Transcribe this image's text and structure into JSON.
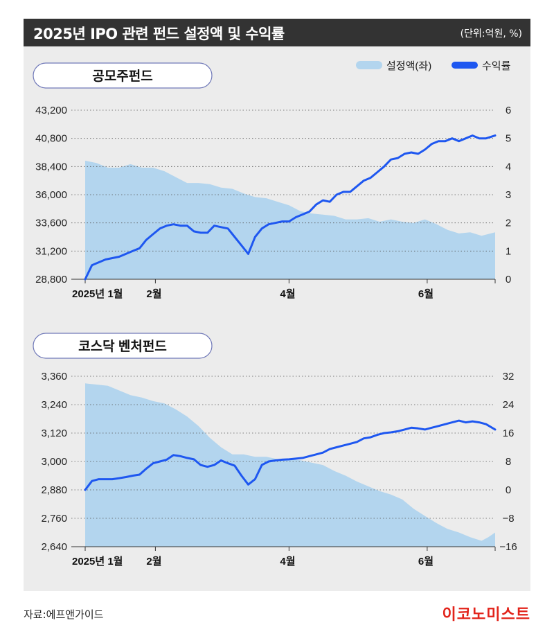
{
  "header": {
    "title": "2025년 IPO 관련 펀드 설정액 및 수익률",
    "unit": "(단위:억원, %)"
  },
  "legend": {
    "area_label": "설정액(좌)",
    "line_label": "수익률"
  },
  "colors": {
    "area": "#b3d5ee",
    "line": "#1e57f0",
    "header_bg": "#333333",
    "panel_bg": "#ececec",
    "logo": "#e2231a"
  },
  "footer": {
    "source": "자료:에프앤가이드",
    "logo": "이코노미스트"
  },
  "chart_data": [
    {
      "type": "area+line",
      "panel_title": "공모주펀드",
      "x_tick_labels": [
        {
          "label": "2025년 1월",
          "x": 0
        },
        {
          "label": "2월",
          "x": 31
        },
        {
          "label": "4월",
          "x": 90
        },
        {
          "label": "6월",
          "x": 151
        }
      ],
      "x_range": [
        0,
        181
      ],
      "y_left": {
        "ticks": [
          28800,
          31200,
          33600,
          36000,
          38400,
          40800,
          43200
        ],
        "labels": [
          "28,800",
          "31,200",
          "33,600",
          "36,000",
          "38,400",
          "40,800",
          "43,200"
        ],
        "range": [
          28800,
          43200
        ]
      },
      "y_right": {
        "ticks": [
          0,
          1,
          2,
          3,
          4,
          5,
          6
        ],
        "labels": [
          "0",
          "1",
          "2",
          "3",
          "4",
          "5",
          "6"
        ],
        "range": [
          0,
          6
        ]
      },
      "series": [
        {
          "name": "설정액(좌)",
          "axis": "left",
          "x": [
            0,
            5,
            10,
            15,
            20,
            25,
            30,
            35,
            40,
            45,
            50,
            55,
            60,
            65,
            70,
            75,
            80,
            85,
            90,
            95,
            100,
            105,
            110,
            115,
            120,
            125,
            130,
            135,
            140,
            145,
            150,
            155,
            160,
            165,
            170,
            175,
            181
          ],
          "values": [
            38900,
            38700,
            38300,
            38300,
            38600,
            38300,
            38300,
            38000,
            37500,
            37000,
            37000,
            36900,
            36600,
            36500,
            36100,
            35800,
            35700,
            35400,
            35100,
            34600,
            34400,
            34300,
            34200,
            33900,
            33900,
            34000,
            33700,
            33900,
            33700,
            33600,
            33900,
            33500,
            33000,
            32700,
            32800,
            32500,
            32800
          ]
        },
        {
          "name": "수익률",
          "axis": "right",
          "x": [
            0,
            3,
            6,
            9,
            12,
            15,
            18,
            21,
            24,
            27,
            30,
            33,
            36,
            39,
            42,
            45,
            48,
            51,
            54,
            57,
            60,
            63,
            66,
            69,
            72,
            75,
            78,
            81,
            84,
            87,
            90,
            93,
            96,
            99,
            102,
            105,
            108,
            111,
            114,
            117,
            120,
            123,
            126,
            129,
            132,
            135,
            138,
            141,
            144,
            147,
            150,
            153,
            156,
            159,
            162,
            165,
            168,
            171,
            174,
            177,
            181
          ],
          "values": [
            0.0,
            0.5,
            0.6,
            0.7,
            0.75,
            0.8,
            0.9,
            1.0,
            1.1,
            1.4,
            1.6,
            1.8,
            1.9,
            1.95,
            1.9,
            1.9,
            1.7,
            1.65,
            1.65,
            1.9,
            1.85,
            1.8,
            1.5,
            1.2,
            0.9,
            1.5,
            1.8,
            1.95,
            2.0,
            2.05,
            2.05,
            2.2,
            2.3,
            2.4,
            2.65,
            2.8,
            2.75,
            3.0,
            3.1,
            3.1,
            3.3,
            3.5,
            3.6,
            3.8,
            4.0,
            4.25,
            4.3,
            4.45,
            4.5,
            4.45,
            4.6,
            4.8,
            4.9,
            4.9,
            5.0,
            4.9,
            5.0,
            5.1,
            5.0,
            5.0,
            5.1
          ]
        }
      ]
    },
    {
      "type": "area+line",
      "panel_title": "코스닥 벤처펀드",
      "x_tick_labels": [
        {
          "label": "2025년 1월",
          "x": 0
        },
        {
          "label": "2월",
          "x": 31
        },
        {
          "label": "4월",
          "x": 90
        },
        {
          "label": "6월",
          "x": 151
        }
      ],
      "x_range": [
        0,
        181
      ],
      "y_left": {
        "ticks": [
          2640,
          2760,
          2880,
          3000,
          3120,
          3240,
          3360
        ],
        "labels": [
          "2,640",
          "2,760",
          "2,880",
          "3,000",
          "3,120",
          "3,240",
          "3,360"
        ],
        "range": [
          2640,
          3360
        ]
      },
      "y_right": {
        "ticks": [
          -16,
          -8,
          0,
          8,
          16,
          24,
          32
        ],
        "labels": [
          "−16",
          "−8",
          "0",
          "8",
          "16",
          "24",
          "32"
        ],
        "range": [
          -16,
          32
        ]
      },
      "series": [
        {
          "name": "설정액(좌)",
          "axis": "left",
          "x": [
            0,
            5,
            10,
            15,
            20,
            25,
            30,
            35,
            40,
            45,
            50,
            55,
            60,
            65,
            70,
            75,
            80,
            85,
            90,
            95,
            100,
            105,
            110,
            115,
            120,
            125,
            130,
            135,
            140,
            145,
            150,
            155,
            160,
            165,
            170,
            175,
            178,
            181
          ],
          "values": [
            3330,
            3325,
            3320,
            3300,
            3280,
            3270,
            3255,
            3245,
            3220,
            3190,
            3150,
            3100,
            3060,
            3030,
            3030,
            3020,
            3020,
            3010,
            3010,
            3005,
            2995,
            2985,
            2960,
            2940,
            2915,
            2895,
            2875,
            2860,
            2840,
            2800,
            2770,
            2740,
            2715,
            2700,
            2680,
            2665,
            2680,
            2700
          ]
        },
        {
          "name": "수익률",
          "axis": "right",
          "x": [
            0,
            3,
            6,
            9,
            12,
            15,
            18,
            21,
            24,
            27,
            30,
            33,
            36,
            39,
            42,
            45,
            48,
            51,
            54,
            57,
            60,
            63,
            66,
            69,
            72,
            75,
            78,
            81,
            84,
            87,
            90,
            93,
            96,
            99,
            102,
            105,
            108,
            111,
            114,
            117,
            120,
            123,
            126,
            129,
            132,
            135,
            138,
            141,
            144,
            147,
            150,
            153,
            156,
            159,
            162,
            165,
            168,
            171,
            174,
            177,
            181
          ],
          "values": [
            0.0,
            2.5,
            3.0,
            3.0,
            3.0,
            3.3,
            3.6,
            4.0,
            4.3,
            6.0,
            7.5,
            8.0,
            8.5,
            9.8,
            9.5,
            9.0,
            8.6,
            7.0,
            6.5,
            7.0,
            8.3,
            7.5,
            6.8,
            4.0,
            1.5,
            3.0,
            7.0,
            8.0,
            8.3,
            8.5,
            8.6,
            8.8,
            9.0,
            9.5,
            10.0,
            10.5,
            11.5,
            12.0,
            12.5,
            13.0,
            13.5,
            14.5,
            14.8,
            15.5,
            16.0,
            16.2,
            16.5,
            17.0,
            17.5,
            17.3,
            17.0,
            17.5,
            18.0,
            18.5,
            19.0,
            19.5,
            19.0,
            19.3,
            19.0,
            18.5,
            17.0
          ]
        }
      ]
    }
  ]
}
